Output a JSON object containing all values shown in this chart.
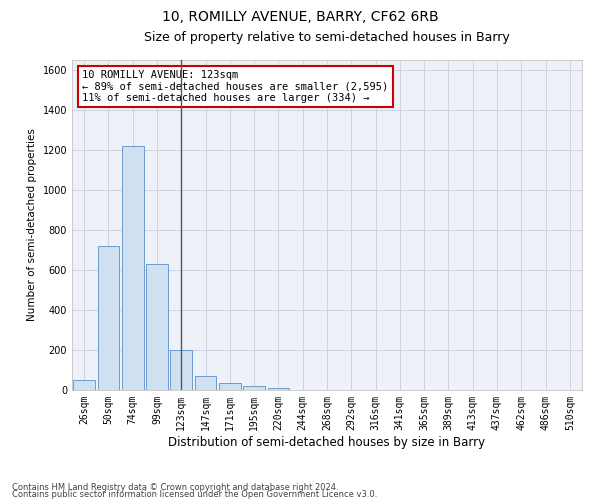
{
  "title1": "10, ROMILLY AVENUE, BARRY, CF62 6RB",
  "title2": "Size of property relative to semi-detached houses in Barry",
  "xlabel": "Distribution of semi-detached houses by size in Barry",
  "ylabel": "Number of semi-detached properties",
  "categories": [
    "26sqm",
    "50sqm",
    "74sqm",
    "99sqm",
    "123sqm",
    "147sqm",
    "171sqm",
    "195sqm",
    "220sqm",
    "244sqm",
    "268sqm",
    "292sqm",
    "316sqm",
    "341sqm",
    "365sqm",
    "389sqm",
    "413sqm",
    "437sqm",
    "462sqm",
    "486sqm",
    "510sqm"
  ],
  "values": [
    50,
    720,
    1220,
    630,
    200,
    70,
    35,
    20,
    10,
    2,
    0,
    0,
    0,
    0,
    0,
    0,
    0,
    0,
    0,
    0,
    0
  ],
  "bar_color": "#cfe0f0",
  "bar_edge_color": "#5b8fc9",
  "highlight_index": 4,
  "highlight_line_color": "#555555",
  "annotation_line1": "10 ROMILLY AVENUE: 123sqm",
  "annotation_line2": "← 89% of semi-detached houses are smaller (2,595)",
  "annotation_line3": "11% of semi-detached houses are larger (334) →",
  "annotation_box_facecolor": "#ffffff",
  "annotation_box_edgecolor": "#cc0000",
  "ylim": [
    0,
    1650
  ],
  "yticks": [
    0,
    200,
    400,
    600,
    800,
    1000,
    1200,
    1400,
    1600
  ],
  "footer1": "Contains HM Land Registry data © Crown copyright and database right 2024.",
  "footer2": "Contains public sector information licensed under the Open Government Licence v3.0.",
  "bg_color": "#ffffff",
  "plot_bg_color": "#eef2f8",
  "grid_color": "#c5cfe0",
  "title1_fontsize": 10,
  "title2_fontsize": 9,
  "xlabel_fontsize": 8.5,
  "ylabel_fontsize": 7.5,
  "tick_fontsize": 7,
  "annotation_fontsize": 7.5,
  "footer_fontsize": 6
}
